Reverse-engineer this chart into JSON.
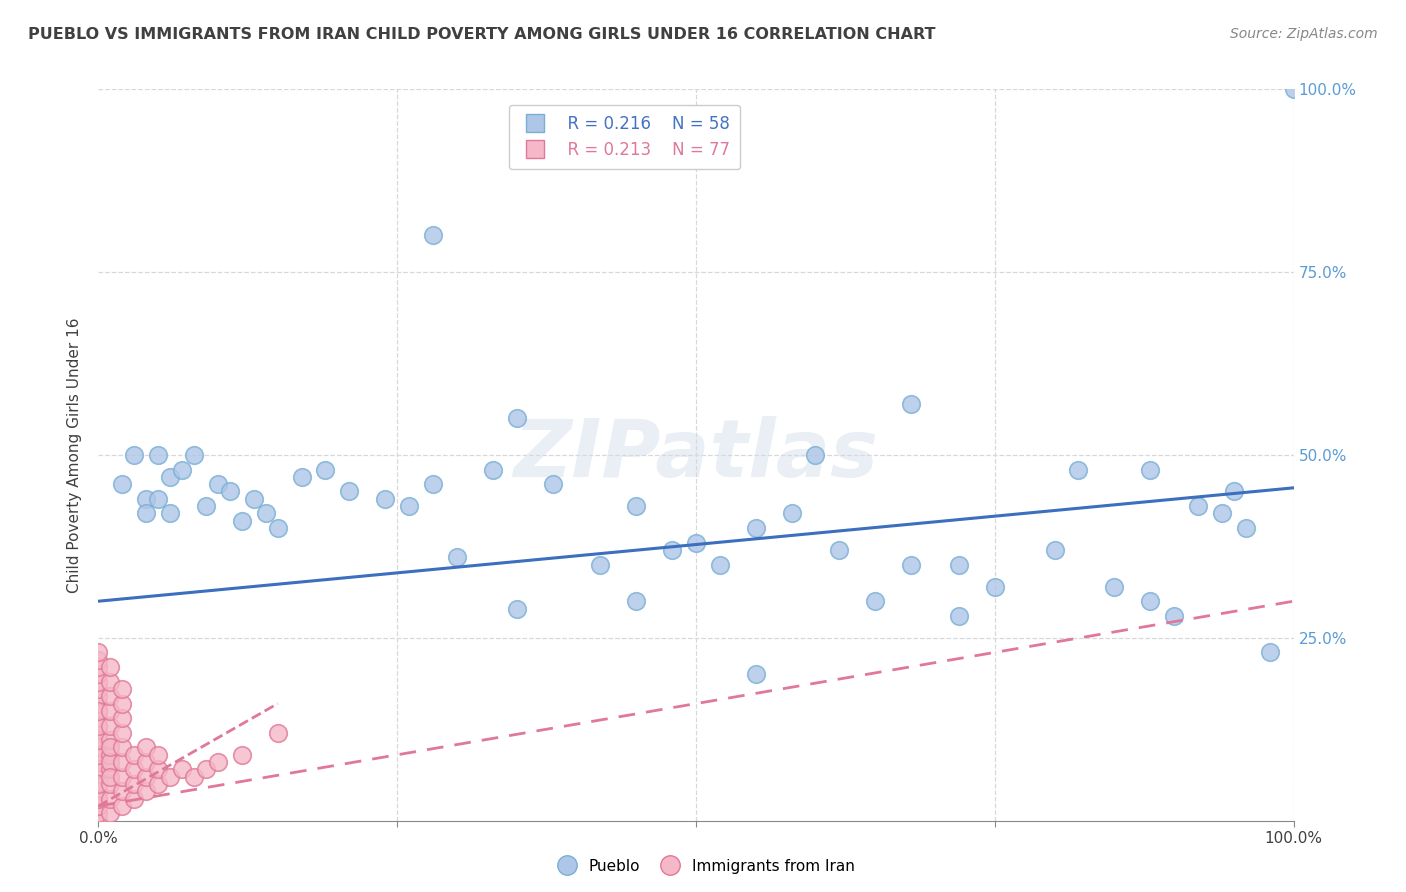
{
  "title": "PUEBLO VS IMMIGRANTS FROM IRAN CHILD POVERTY AMONG GIRLS UNDER 16 CORRELATION CHART",
  "source": "Source: ZipAtlas.com",
  "ylabel": "Child Poverty Among Girls Under 16",
  "xlim": [
    0,
    1
  ],
  "ylim": [
    0,
    1
  ],
  "xticks": [
    0,
    0.25,
    0.5,
    0.75,
    1.0
  ],
  "yticks": [
    0.25,
    0.5,
    0.75,
    1.0
  ],
  "xticklabels": [
    "0.0%",
    "",
    "",
    "",
    "100.0%"
  ],
  "yticklabels_right": [
    "25.0%",
    "50.0%",
    "75.0%",
    "100.0%"
  ],
  "pueblo_color": "#aec6e8",
  "iran_color": "#f5b8c8",
  "pueblo_edge": "#7aafd4",
  "iran_edge": "#e07898",
  "trend_blue": "#3c6fbe",
  "trend_pink": "#e07898",
  "watermark_text": "ZIPatlas",
  "legend_R_pueblo": "R = 0.216",
  "legend_N_pueblo": "N = 58",
  "legend_R_iran": "R = 0.213",
  "legend_N_iran": "N = 77",
  "pueblo_color_legend": "#4472c4",
  "iran_color_legend": "#e07898",
  "pueblo_x": [
    0.02,
    0.03,
    0.04,
    0.04,
    0.05,
    0.05,
    0.06,
    0.06,
    0.07,
    0.08,
    0.09,
    0.1,
    0.11,
    0.12,
    0.13,
    0.14,
    0.15,
    0.17,
    0.19,
    0.21,
    0.24,
    0.26,
    0.28,
    0.3,
    0.33,
    0.35,
    0.38,
    0.42,
    0.45,
    0.48,
    0.52,
    0.55,
    0.58,
    0.62,
    0.65,
    0.68,
    0.72,
    0.75,
    0.8,
    0.82,
    0.85,
    0.88,
    0.9,
    0.92,
    0.94,
    0.96,
    0.98,
    1.0,
    0.35,
    0.28,
    0.55,
    0.6,
    0.68,
    0.45,
    0.5,
    0.72,
    0.88,
    0.95
  ],
  "pueblo_y": [
    0.46,
    0.5,
    0.44,
    0.42,
    0.5,
    0.44,
    0.47,
    0.42,
    0.48,
    0.5,
    0.43,
    0.46,
    0.45,
    0.41,
    0.44,
    0.42,
    0.4,
    0.47,
    0.48,
    0.45,
    0.44,
    0.43,
    0.46,
    0.36,
    0.48,
    0.29,
    0.46,
    0.35,
    0.43,
    0.37,
    0.35,
    0.4,
    0.42,
    0.37,
    0.3,
    0.35,
    0.28,
    0.32,
    0.37,
    0.48,
    0.32,
    0.3,
    0.28,
    0.43,
    0.42,
    0.4,
    0.23,
    1.0,
    0.55,
    0.8,
    0.2,
    0.5,
    0.57,
    0.3,
    0.38,
    0.35,
    0.48,
    0.45
  ],
  "iran_x": [
    0.0,
    0.0,
    0.0,
    0.0,
    0.0,
    0.0,
    0.0,
    0.0,
    0.0,
    0.0,
    0.0,
    0.0,
    0.0,
    0.0,
    0.0,
    0.0,
    0.0,
    0.0,
    0.0,
    0.0,
    0.0,
    0.0,
    0.0,
    0.0,
    0.0,
    0.0,
    0.0,
    0.0,
    0.0,
    0.0,
    0.0,
    0.0,
    0.0,
    0.0,
    0.0,
    0.0,
    0.01,
    0.01,
    0.01,
    0.01,
    0.01,
    0.01,
    0.01,
    0.01,
    0.01,
    0.01,
    0.01,
    0.01,
    0.01,
    0.01,
    0.02,
    0.02,
    0.02,
    0.02,
    0.02,
    0.02,
    0.02,
    0.02,
    0.02,
    0.03,
    0.03,
    0.03,
    0.03,
    0.04,
    0.04,
    0.04,
    0.04,
    0.05,
    0.05,
    0.05,
    0.06,
    0.07,
    0.08,
    0.09,
    0.1,
    0.12,
    0.15
  ],
  "iran_y": [
    0.0,
    0.01,
    0.02,
    0.03,
    0.04,
    0.05,
    0.06,
    0.07,
    0.08,
    0.09,
    0.1,
    0.11,
    0.12,
    0.13,
    0.14,
    0.15,
    0.16,
    0.17,
    0.18,
    0.19,
    0.2,
    0.21,
    0.22,
    0.23,
    0.06,
    0.08,
    0.1,
    0.07,
    0.04,
    0.02,
    0.09,
    0.11,
    0.13,
    0.15,
    0.03,
    0.05,
    0.01,
    0.03,
    0.05,
    0.07,
    0.09,
    0.11,
    0.13,
    0.15,
    0.17,
    0.19,
    0.21,
    0.08,
    0.1,
    0.06,
    0.02,
    0.04,
    0.06,
    0.08,
    0.1,
    0.12,
    0.14,
    0.16,
    0.18,
    0.03,
    0.05,
    0.07,
    0.09,
    0.04,
    0.06,
    0.08,
    0.1,
    0.05,
    0.07,
    0.09,
    0.06,
    0.07,
    0.06,
    0.07,
    0.08,
    0.09,
    0.12
  ]
}
